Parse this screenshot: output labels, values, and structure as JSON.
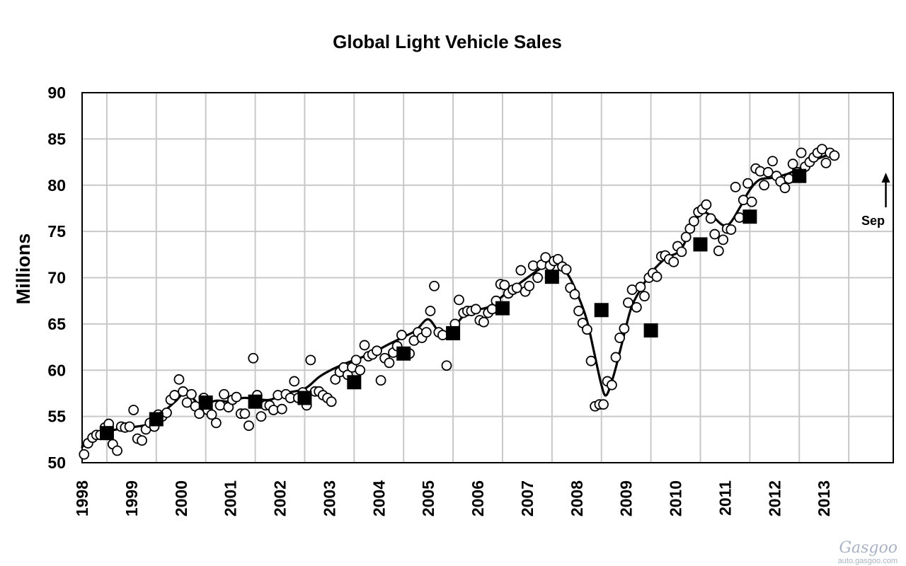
{
  "watermark": {
    "logo_text": "Gasgoo",
    "site": "auto.gasgoo.com"
  },
  "chart_data": {
    "type": "scatter",
    "title": "Global Light Vehicle Sales",
    "ylabel": "Millions",
    "xlabel": "",
    "ylim": [
      50,
      90
    ],
    "yticks": [
      50,
      55,
      60,
      65,
      70,
      75,
      80,
      85,
      90
    ],
    "xlim": [
      1997.5,
      2013.9
    ],
    "xticks": [
      "1998",
      "1999",
      "2000",
      "2001",
      "2002",
      "2003",
      "2004",
      "2005",
      "2006",
      "2007",
      "2008",
      "2009",
      "2010",
      "2011",
      "2012",
      "2013"
    ],
    "grid": true,
    "annotation": {
      "text": "Sep",
      "x": 2013.75,
      "y": 81.2
    },
    "series": [
      {
        "style": "monthly-open-circles",
        "points": [
          [
            1997.54,
            50.9
          ],
          [
            1997.62,
            52.1
          ],
          [
            1997.71,
            52.7
          ],
          [
            1997.79,
            53.0
          ],
          [
            1997.87,
            53.0
          ],
          [
            1997.96,
            53.8
          ],
          [
            1998.04,
            54.2
          ],
          [
            1998.12,
            52.0
          ],
          [
            1998.21,
            51.3
          ],
          [
            1998.29,
            53.9
          ],
          [
            1998.37,
            53.8
          ],
          [
            1998.46,
            53.9
          ],
          [
            1998.54,
            55.7
          ],
          [
            1998.62,
            52.6
          ],
          [
            1998.71,
            52.4
          ],
          [
            1998.79,
            53.6
          ],
          [
            1998.87,
            54.3
          ],
          [
            1998.96,
            53.9
          ],
          [
            1999.04,
            55.2
          ],
          [
            1999.12,
            55.0
          ],
          [
            1999.21,
            55.4
          ],
          [
            1999.29,
            56.8
          ],
          [
            1999.37,
            57.3
          ],
          [
            1999.46,
            59.0
          ],
          [
            1999.54,
            57.7
          ],
          [
            1999.62,
            56.5
          ],
          [
            1999.71,
            57.4
          ],
          [
            1999.79,
            56.1
          ],
          [
            1999.87,
            55.3
          ],
          [
            1999.96,
            57.0
          ],
          [
            2000.04,
            55.7
          ],
          [
            2000.12,
            55.2
          ],
          [
            2000.21,
            54.3
          ],
          [
            2000.29,
            56.2
          ],
          [
            2000.37,
            57.4
          ],
          [
            2000.46,
            56.0
          ],
          [
            2000.54,
            56.8
          ],
          [
            2000.62,
            57.1
          ],
          [
            2000.71,
            55.3
          ],
          [
            2000.79,
            55.3
          ],
          [
            2000.87,
            54.0
          ],
          [
            2000.96,
            61.3
          ],
          [
            2001.04,
            57.3
          ],
          [
            2001.12,
            55.0
          ],
          [
            2001.21,
            56.2
          ],
          [
            2001.29,
            56.2
          ],
          [
            2001.37,
            55.7
          ],
          [
            2001.46,
            57.3
          ],
          [
            2001.54,
            55.8
          ],
          [
            2001.62,
            57.4
          ],
          [
            2001.71,
            57.0
          ],
          [
            2001.79,
            58.8
          ],
          [
            2001.87,
            57.0
          ],
          [
            2001.96,
            57.6
          ],
          [
            2002.04,
            56.2
          ],
          [
            2002.12,
            61.1
          ],
          [
            2002.21,
            57.7
          ],
          [
            2002.29,
            57.7
          ],
          [
            2002.37,
            57.3
          ],
          [
            2002.46,
            57.0
          ],
          [
            2002.54,
            56.6
          ],
          [
            2002.62,
            59.0
          ],
          [
            2002.71,
            59.8
          ],
          [
            2002.79,
            60.3
          ],
          [
            2002.87,
            59.5
          ],
          [
            2002.96,
            60.3
          ],
          [
            2003.04,
            61.1
          ],
          [
            2003.12,
            60.0
          ],
          [
            2003.21,
            62.7
          ],
          [
            2003.29,
            61.5
          ],
          [
            2003.37,
            61.7
          ],
          [
            2003.46,
            62.1
          ],
          [
            2003.54,
            58.9
          ],
          [
            2003.62,
            61.3
          ],
          [
            2003.71,
            60.8
          ],
          [
            2003.79,
            61.9
          ],
          [
            2003.87,
            62.6
          ],
          [
            2003.96,
            63.8
          ],
          [
            2004.04,
            61.8
          ],
          [
            2004.12,
            61.8
          ],
          [
            2004.21,
            63.2
          ],
          [
            2004.29,
            64.1
          ],
          [
            2004.37,
            63.5
          ],
          [
            2004.46,
            64.1
          ],
          [
            2004.54,
            66.4
          ],
          [
            2004.62,
            69.1
          ],
          [
            2004.71,
            64.1
          ],
          [
            2004.79,
            63.8
          ],
          [
            2004.87,
            60.5
          ],
          [
            2004.96,
            63.9
          ],
          [
            2005.04,
            65.0
          ],
          [
            2005.12,
            67.6
          ],
          [
            2005.21,
            66.2
          ],
          [
            2005.29,
            66.4
          ],
          [
            2005.37,
            66.4
          ],
          [
            2005.46,
            66.6
          ],
          [
            2005.54,
            65.4
          ],
          [
            2005.62,
            65.2
          ],
          [
            2005.71,
            66.2
          ],
          [
            2005.79,
            66.6
          ],
          [
            2005.87,
            67.5
          ],
          [
            2005.96,
            69.3
          ],
          [
            2006.04,
            69.2
          ],
          [
            2006.12,
            68.3
          ],
          [
            2006.21,
            68.7
          ],
          [
            2006.29,
            68.9
          ],
          [
            2006.37,
            70.8
          ],
          [
            2006.46,
            68.5
          ],
          [
            2006.54,
            69.1
          ],
          [
            2006.62,
            71.3
          ],
          [
            2006.71,
            70.0
          ],
          [
            2006.79,
            71.4
          ],
          [
            2006.87,
            72.2
          ],
          [
            2006.96,
            71.3
          ],
          [
            2007.04,
            71.8
          ],
          [
            2007.12,
            72.0
          ],
          [
            2007.21,
            71.2
          ],
          [
            2007.29,
            70.9
          ],
          [
            2007.37,
            68.9
          ],
          [
            2007.46,
            68.2
          ],
          [
            2007.54,
            66.4
          ],
          [
            2007.62,
            65.1
          ],
          [
            2007.71,
            64.4
          ],
          [
            2007.79,
            61.0
          ],
          [
            2007.87,
            56.1
          ],
          [
            2007.96,
            56.3
          ],
          [
            2008.04,
            56.3
          ],
          [
            2008.12,
            58.8
          ],
          [
            2008.21,
            58.4
          ],
          [
            2008.29,
            61.4
          ],
          [
            2008.37,
            63.5
          ],
          [
            2008.46,
            64.5
          ],
          [
            2008.54,
            67.3
          ],
          [
            2008.62,
            68.7
          ],
          [
            2008.71,
            66.8
          ],
          [
            2008.79,
            69.0
          ],
          [
            2008.87,
            68.0
          ],
          [
            2008.96,
            70.0
          ],
          [
            2009.04,
            70.5
          ],
          [
            2009.12,
            70.1
          ],
          [
            2009.21,
            72.3
          ],
          [
            2009.29,
            72.4
          ],
          [
            2009.37,
            72.0
          ],
          [
            2009.46,
            71.7
          ],
          [
            2009.54,
            73.4
          ],
          [
            2009.62,
            72.8
          ],
          [
            2009.71,
            74.4
          ],
          [
            2009.79,
            75.3
          ],
          [
            2009.87,
            76.1
          ],
          [
            2009.96,
            77.1
          ],
          [
            2010.04,
            77.4
          ],
          [
            2010.12,
            77.9
          ],
          [
            2010.21,
            76.4
          ],
          [
            2010.29,
            74.7
          ],
          [
            2010.37,
            72.9
          ],
          [
            2010.46,
            74.1
          ],
          [
            2010.54,
            75.3
          ],
          [
            2010.62,
            75.2
          ],
          [
            2010.71,
            79.8
          ],
          [
            2010.79,
            76.5
          ],
          [
            2010.87,
            78.4
          ],
          [
            2010.96,
            80.2
          ],
          [
            2011.04,
            78.2
          ],
          [
            2011.12,
            81.8
          ],
          [
            2011.21,
            81.5
          ],
          [
            2011.29,
            80.0
          ],
          [
            2011.37,
            81.4
          ],
          [
            2011.46,
            82.6
          ],
          [
            2011.54,
            81.0
          ],
          [
            2011.62,
            80.4
          ],
          [
            2011.71,
            79.7
          ],
          [
            2011.79,
            80.7
          ],
          [
            2011.87,
            82.3
          ],
          [
            2011.96,
            81.4
          ],
          [
            2012.04,
            83.5
          ],
          [
            2012.12,
            82.0
          ],
          [
            2012.21,
            82.5
          ],
          [
            2012.29,
            83.0
          ],
          [
            2012.37,
            83.5
          ],
          [
            2012.46,
            83.9
          ],
          [
            2012.54,
            82.4
          ],
          [
            2012.62,
            83.5
          ],
          [
            2012.71,
            83.2
          ]
        ]
      },
      {
        "style": "annual-filled-squares",
        "points": [
          [
            1998.0,
            53.2
          ],
          [
            1999.0,
            54.7
          ],
          [
            2000.0,
            56.5
          ],
          [
            2001.0,
            56.6
          ],
          [
            2002.0,
            57.0
          ],
          [
            2003.0,
            58.7
          ],
          [
            2004.0,
            61.8
          ],
          [
            2005.0,
            64.0
          ],
          [
            2006.0,
            66.7
          ],
          [
            2007.0,
            70.1
          ],
          [
            2008.0,
            66.5
          ],
          [
            2009.0,
            64.3
          ],
          [
            2010.0,
            73.6
          ],
          [
            2011.0,
            76.6
          ],
          [
            2012.0,
            81.0
          ]
        ]
      },
      {
        "style": "trend-line",
        "points": [
          [
            1997.5,
            51.7
          ],
          [
            1997.8,
            53.0
          ],
          [
            1998.2,
            53.6
          ],
          [
            1998.6,
            53.9
          ],
          [
            1998.85,
            54.2
          ],
          [
            1999.1,
            55.3
          ],
          [
            1999.4,
            56.7
          ],
          [
            1999.55,
            57.5
          ],
          [
            1999.7,
            57.2
          ],
          [
            1999.9,
            56.2
          ],
          [
            2000.2,
            56.7
          ],
          [
            2000.5,
            56.6
          ],
          [
            2000.75,
            57.0
          ],
          [
            2001.0,
            56.9
          ],
          [
            2001.3,
            56.8
          ],
          [
            2001.6,
            57.5
          ],
          [
            2002.0,
            58.0
          ],
          [
            2002.3,
            59.3
          ],
          [
            2002.6,
            60.2
          ],
          [
            2002.95,
            61.0
          ],
          [
            2003.3,
            61.7
          ],
          [
            2003.7,
            62.8
          ],
          [
            2004.0,
            63.6
          ],
          [
            2004.25,
            64.3
          ],
          [
            2004.5,
            65.5
          ],
          [
            2004.75,
            64.0
          ],
          [
            2005.0,
            64.6
          ],
          [
            2005.3,
            66.3
          ],
          [
            2005.7,
            66.8
          ],
          [
            2006.0,
            68.0
          ],
          [
            2006.4,
            69.6
          ],
          [
            2006.8,
            71.1
          ],
          [
            2007.05,
            71.6
          ],
          [
            2007.3,
            70.5
          ],
          [
            2007.5,
            68.4
          ],
          [
            2007.7,
            65.5
          ],
          [
            2007.85,
            62.0
          ],
          [
            2008.0,
            58.4
          ],
          [
            2008.1,
            57.3
          ],
          [
            2008.25,
            59.5
          ],
          [
            2008.4,
            62.6
          ],
          [
            2008.6,
            66.7
          ],
          [
            2008.8,
            68.8
          ],
          [
            2009.0,
            70.5
          ],
          [
            2009.3,
            72.1
          ],
          [
            2009.6,
            73.0
          ],
          [
            2009.85,
            75.7
          ],
          [
            2010.05,
            77.0
          ],
          [
            2010.25,
            76.6
          ],
          [
            2010.45,
            75.7
          ],
          [
            2010.6,
            75.9
          ],
          [
            2010.8,
            77.6
          ],
          [
            2011.0,
            79.5
          ],
          [
            2011.2,
            80.6
          ],
          [
            2011.45,
            80.8
          ],
          [
            2011.75,
            81.2
          ],
          [
            2012.0,
            81.8
          ],
          [
            2012.3,
            82.7
          ],
          [
            2012.65,
            83.4
          ]
        ]
      }
    ]
  }
}
